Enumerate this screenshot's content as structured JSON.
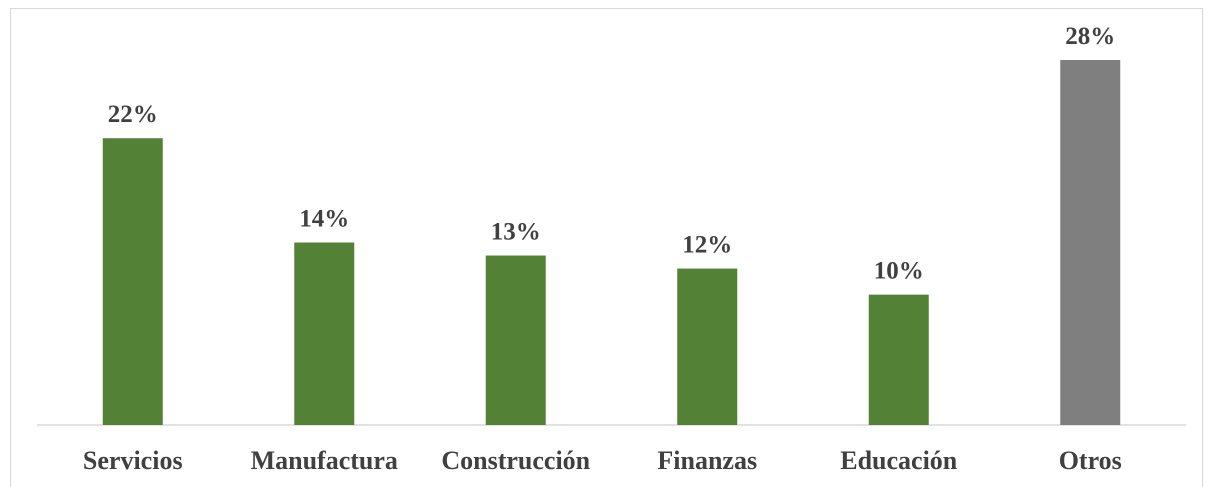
{
  "chart_data": {
    "type": "bar",
    "categories": [
      "Servicios",
      "Manufactura",
      "Construcción",
      "Finanzas",
      "Educación",
      "Otros"
    ],
    "values": [
      22,
      14,
      13,
      12,
      10,
      28
    ],
    "value_labels": [
      "22%",
      "14%",
      "13%",
      "12%",
      "10%",
      "28%"
    ],
    "colors": [
      "#538135",
      "#538135",
      "#538135",
      "#538135",
      "#538135",
      "#7f7f7f"
    ]
  }
}
